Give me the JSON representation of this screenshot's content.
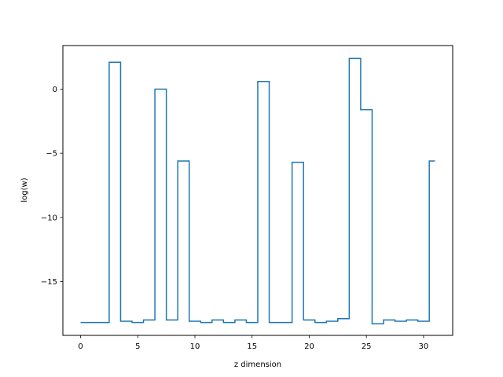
{
  "chart_data": {
    "type": "line",
    "drawstyle": "steps-mid",
    "xlabel": "z dimension",
    "ylabel": "log(w)",
    "xlim": [
      -1.55,
      32.55
    ],
    "ylim": [
      -19.2,
      3.4
    ],
    "xticks": [
      0,
      5,
      10,
      15,
      20,
      25,
      30
    ],
    "xtick_labels": [
      "0",
      "5",
      "10",
      "15",
      "20",
      "25",
      "30"
    ],
    "yticks": [
      0,
      -5,
      -10,
      -15
    ],
    "ytick_labels": [
      "0",
      "−5",
      "−10",
      "−15"
    ],
    "grid": false,
    "series": [
      {
        "color": "#1f77b4",
        "x": [
          0,
          1,
          2,
          3,
          4,
          5,
          6,
          7,
          8,
          9,
          10,
          11,
          12,
          13,
          14,
          15,
          16,
          17,
          18,
          19,
          20,
          21,
          22,
          23,
          24,
          25,
          26,
          27,
          28,
          29,
          30,
          31
        ],
        "values": [
          -18.2,
          -18.2,
          -18.2,
          2.1,
          -18.1,
          -18.2,
          -18.0,
          0.0,
          -18.0,
          -5.6,
          -18.1,
          -18.2,
          -18.0,
          -18.2,
          -18.0,
          -18.2,
          0.6,
          -18.2,
          -18.2,
          -5.7,
          -18.0,
          -18.2,
          -18.1,
          -17.9,
          2.4,
          -1.6,
          -18.3,
          -18.0,
          -18.1,
          -18.0,
          -18.1,
          -5.6
        ]
      }
    ]
  }
}
